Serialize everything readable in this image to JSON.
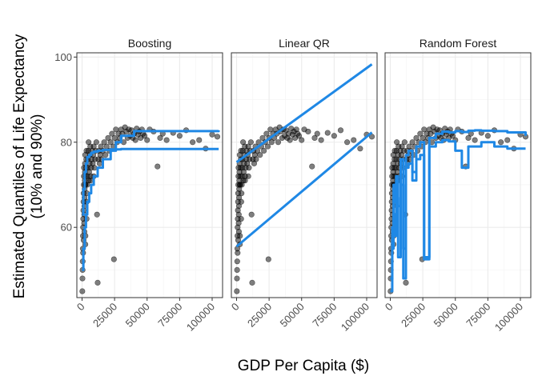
{
  "chart_data": {
    "type": "scatter",
    "xlabel": "GDP Per Capita ($)",
    "ylabel_lines": [
      "Estimated Quantiles of Life Expectancy",
      "(10% and 90%)"
    ],
    "xlim": [
      -4000,
      108000
    ],
    "ylim": [
      43.5,
      101
    ],
    "x_ticks": [
      0,
      25000,
      50000,
      75000,
      100000
    ],
    "x_tick_labels": [
      "0",
      "25000",
      "50000",
      "75000",
      "100000"
    ],
    "y_ticks": [
      60,
      80,
      100
    ],
    "y_tick_labels": [
      "60",
      "80",
      "100"
    ],
    "grid": true,
    "colors": {
      "points": "#000000",
      "line": "#1f88e5",
      "panel_border": "#333333",
      "grid": "#ebebeb"
    },
    "facets": [
      {
        "label": "Boosting",
        "lines": [
          {
            "x": [
              0,
              1000,
              2000,
              3000,
              4000,
              5500,
              7000,
              9000,
              12000,
              16000,
              22000,
              30000,
              40000,
              105000
            ],
            "y": [
              63,
              69,
              73,
              75,
              76.5,
              77,
              77.5,
              77.8,
              78,
              78.2,
              78.3,
              78.4,
              78.4,
              78.4
            ]
          },
          {
            "x": [
              0,
              1000,
              2000,
              3000,
              4000,
              5500,
              7000,
              9000,
              12000,
              16000,
              22000,
              26000,
              30000,
              40000,
              105000
            ],
            "y": [
              50,
              55,
              60,
              63,
              66,
              68,
              70,
              72,
              74,
              76,
              78,
              80,
              81.5,
              82.6,
              82.8
            ]
          }
        ]
      },
      {
        "label": "Linear QR",
        "lines": [
          {
            "x": [
              0,
              104000
            ],
            "y": [
              75.3,
              98.3
            ]
          },
          {
            "x": [
              0,
              104000
            ],
            "y": [
              55.5,
              82.3
            ]
          }
        ]
      },
      {
        "label": "Random Forest",
        "lines": [
          {
            "x": [
              0,
              1500,
              2500,
              3500,
              4500,
              6000,
              8000,
              10000,
              12000,
              14000,
              17000,
              20000,
              23000,
              26000,
              30000,
              35000,
              40000,
              45000,
              50000,
              55000,
              60000,
              65000,
              70000,
              80000,
              90000,
              104000
            ],
            "y": [
              48,
              60,
              70,
              66,
              72,
              65,
              76,
              55,
              77,
              78,
              73,
              79,
              80,
              53,
              81,
              82,
              82.5,
              82.3,
              82.6,
              82.4,
              82.7,
              82.8,
              82.7,
              82.6,
              82.3,
              81.5
            ]
          },
          {
            "x": [
              0,
              1500,
              2500,
              3500,
              4500,
              6000,
              8000,
              10000,
              12000,
              14000,
              17000,
              20000,
              23000,
              26000,
              30000,
              35000,
              40000,
              45000,
              50000,
              55000,
              60000,
              65000,
              70000,
              80000,
              90000,
              104000
            ],
            "y": [
              45,
              55,
              63,
              58,
              67,
              53,
              70,
              48,
              74,
              75,
              71,
              76,
              77,
              52.5,
              79,
              80,
              80.5,
              80.2,
              78,
              74,
              79,
              79,
              80,
              79,
              78.5,
              78.5
            ]
          }
        ]
      }
    ],
    "points": [
      [
        200,
        45
      ],
      [
        300,
        48
      ],
      [
        400,
        50
      ],
      [
        500,
        52
      ],
      [
        600,
        55
      ],
      [
        700,
        58
      ],
      [
        800,
        60
      ],
      [
        900,
        62
      ],
      [
        1000,
        64
      ],
      [
        1100,
        66
      ],
      [
        1200,
        68
      ],
      [
        1300,
        70
      ],
      [
        1400,
        72
      ],
      [
        1500,
        74
      ],
      [
        1600,
        61
      ],
      [
        1700,
        63
      ],
      [
        1800,
        65
      ],
      [
        1900,
        67
      ],
      [
        2000,
        69
      ],
      [
        2100,
        71
      ],
      [
        2200,
        73
      ],
      [
        2300,
        75
      ],
      [
        2400,
        77
      ],
      [
        2500,
        56
      ],
      [
        2600,
        58
      ],
      [
        2700,
        70
      ],
      [
        2800,
        72
      ],
      [
        3000,
        74
      ],
      [
        3200,
        76
      ],
      [
        3400,
        78
      ],
      [
        3600,
        66
      ],
      [
        3800,
        68
      ],
      [
        4000,
        70
      ],
      [
        4200,
        72
      ],
      [
        4400,
        74
      ],
      [
        4600,
        76
      ],
      [
        4800,
        78
      ],
      [
        5000,
        80
      ],
      [
        5200,
        71
      ],
      [
        5500,
        73
      ],
      [
        5800,
        75
      ],
      [
        6000,
        77
      ],
      [
        6300,
        79
      ],
      [
        6600,
        72
      ],
      [
        7000,
        74
      ],
      [
        7400,
        76
      ],
      [
        7800,
        78
      ],
      [
        8200,
        75
      ],
      [
        8600,
        77
      ],
      [
        9000,
        79
      ],
      [
        9500,
        74
      ],
      [
        10000,
        76
      ],
      [
        10500,
        78
      ],
      [
        11000,
        80
      ],
      [
        11500,
        63
      ],
      [
        12000,
        47
      ],
      [
        12500,
        76
      ],
      [
        13000,
        78
      ],
      [
        13500,
        75
      ],
      [
        14000,
        77
      ],
      [
        14500,
        79
      ],
      [
        15000,
        76
      ],
      [
        16000,
        78
      ],
      [
        17000,
        80
      ],
      [
        18000,
        77
      ],
      [
        19000,
        79
      ],
      [
        20000,
        81
      ],
      [
        21000,
        78
      ],
      [
        22000,
        80
      ],
      [
        23000,
        82
      ],
      [
        24000,
        79
      ],
      [
        24500,
        52.5
      ],
      [
        25000,
        81
      ],
      [
        26000,
        83
      ],
      [
        27000,
        80
      ],
      [
        28000,
        82
      ],
      [
        29000,
        81
      ],
      [
        30000,
        83
      ],
      [
        31000,
        82
      ],
      [
        32000,
        80
      ],
      [
        33000,
        83.5
      ],
      [
        34000,
        82.5
      ],
      [
        35000,
        81
      ],
      [
        36000,
        83
      ],
      [
        37000,
        81.5
      ],
      [
        38000,
        82.8
      ],
      [
        39000,
        81
      ],
      [
        40000,
        82
      ],
      [
        41000,
        80.5
      ],
      [
        42000,
        83.2
      ],
      [
        43000,
        81.8
      ],
      [
        44000,
        82.5
      ],
      [
        45000,
        81
      ],
      [
        46000,
        83
      ],
      [
        47000,
        82
      ],
      [
        48000,
        81.5
      ],
      [
        50000,
        80.5
      ],
      [
        52000,
        83
      ],
      [
        55000,
        82.5
      ],
      [
        58000,
        74.3
      ],
      [
        60000,
        81
      ],
      [
        62000,
        82
      ],
      [
        65000,
        80.5
      ],
      [
        70000,
        82.2
      ],
      [
        75000,
        81.5
      ],
      [
        80000,
        82.8
      ],
      [
        85000,
        80
      ],
      [
        90000,
        80.5
      ],
      [
        95000,
        78.5
      ],
      [
        100000,
        81.8
      ],
      [
        104000,
        81.3
      ],
      [
        2500,
        70
      ],
      [
        3500,
        62
      ],
      [
        1200,
        57
      ],
      [
        800,
        54
      ],
      [
        1800,
        59
      ],
      [
        6500,
        71
      ],
      [
        9000,
        72
      ]
    ]
  }
}
